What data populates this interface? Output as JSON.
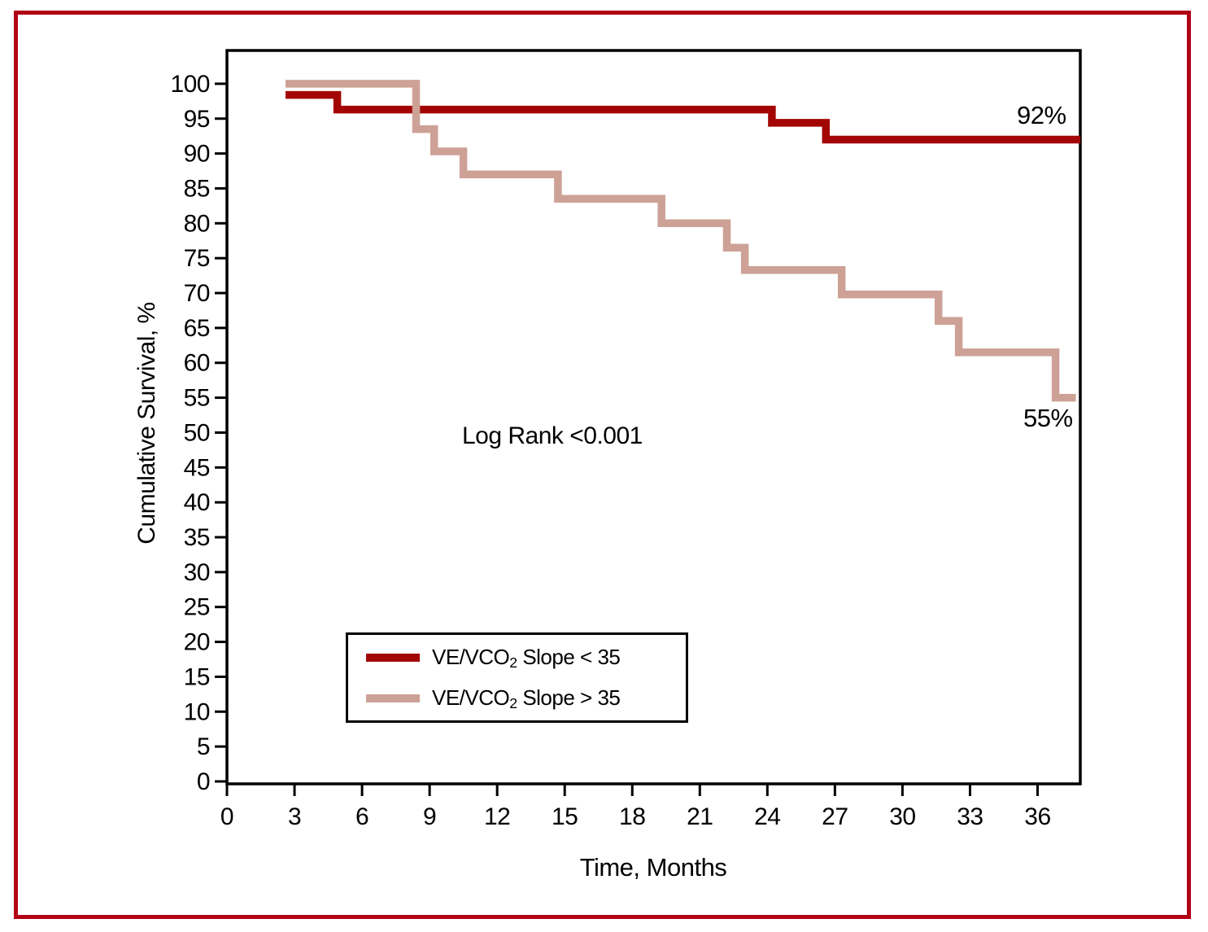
{
  "figure": {
    "frame_color": "#b10015",
    "background": "#ffffff"
  },
  "chart_data": {
    "type": "line",
    "subtype": "kaplan_meier_step",
    "title": "",
    "xlabel": "Time, Months",
    "ylabel": "Cumulative Survival, %",
    "xlim": [
      0,
      37.9
    ],
    "ylim": [
      0,
      104.8
    ],
    "x_ticks": [
      0,
      3,
      6,
      9,
      12,
      15,
      18,
      21,
      24,
      27,
      30,
      33,
      36
    ],
    "y_ticks": [
      0,
      5,
      10,
      15,
      20,
      25,
      30,
      35,
      40,
      45,
      50,
      55,
      60,
      65,
      70,
      75,
      80,
      85,
      90,
      95,
      100
    ],
    "grid": false,
    "annotation": "Log Rank <0.001",
    "legend_position": "lower-left-inside",
    "series": [
      {
        "id": "ve-vco2-slope-lt-35",
        "name": "VE/VCO2 Slope < 35",
        "label_pre": "VE/VCO",
        "label_sub": "2",
        "label_post": " Slope < 35",
        "color": "#a30505",
        "end_label": "92%",
        "end_value": 92,
        "points": [
          [
            2.6,
            98.4
          ],
          [
            4.9,
            96.3
          ],
          [
            24.2,
            94.4
          ],
          [
            26.6,
            92
          ],
          [
            37.9,
            92
          ]
        ]
      },
      {
        "id": "ve-vco2-slope-gt-35",
        "name": "VE/VCO2 Slope > 35",
        "label_pre": "VE/VCO",
        "label_sub": "2",
        "label_post": " Slope > 35",
        "color": "#cda196",
        "end_label": "55%",
        "end_value": 55,
        "points": [
          [
            2.6,
            100
          ],
          [
            8.4,
            93.5
          ],
          [
            9.2,
            90.3
          ],
          [
            10.5,
            87
          ],
          [
            14.7,
            83.5
          ],
          [
            19.3,
            80
          ],
          [
            22.2,
            76.5
          ],
          [
            23.0,
            73.3
          ],
          [
            27.3,
            69.8
          ],
          [
            31.6,
            66
          ],
          [
            32.5,
            61.5
          ],
          [
            36.8,
            55
          ],
          [
            37.7,
            55
          ]
        ]
      }
    ]
  }
}
